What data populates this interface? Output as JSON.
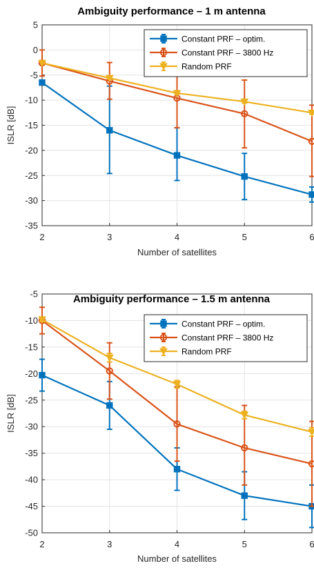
{
  "chart_data": [
    {
      "type": "line",
      "title": "Ambiguity performance – 1 m antenna",
      "xlabel": "Number of satellites",
      "ylabel": "ISLR [dB]",
      "x": [
        2,
        3,
        4,
        5,
        6
      ],
      "xlim": [
        2,
        6
      ],
      "ylim": [
        -35,
        5
      ],
      "yticks": [
        5,
        0,
        -5,
        -10,
        -15,
        -20,
        -25,
        -30,
        -35
      ],
      "grid": true,
      "legend_position": "top-right",
      "series": [
        {
          "name": "Constant PRF – optim.",
          "color": "#0072BD",
          "marker": "square",
          "values": [
            -6.5,
            -16.0,
            -21.0,
            -25.2,
            -28.8
          ],
          "err_low": [
            -6.5,
            -24.6,
            -26.0,
            -29.8,
            -30.3
          ],
          "err_high": [
            -6.5,
            -7.2,
            -15.5,
            -20.6,
            -27.3
          ]
        },
        {
          "name": "Constant PRF – 3800 Hz",
          "color": "#D95319",
          "marker": "circle",
          "values": [
            -2.6,
            -6.2,
            -9.6,
            -12.7,
            -18.2
          ],
          "err_low": [
            -5.2,
            -9.8,
            -15.5,
            -19.5,
            -25.2
          ],
          "err_high": [
            0.0,
            -2.5,
            -3.8,
            -6.0,
            -11.0
          ]
        },
        {
          "name": "Random PRF",
          "color": "#EDB120",
          "marker": "triangle-down",
          "values": [
            -2.6,
            -5.6,
            -8.6,
            -10.3,
            -12.5
          ],
          "err_low": [
            -2.6,
            -5.8,
            -8.8,
            -10.6,
            -12.8
          ],
          "err_high": [
            -2.6,
            -5.4,
            -8.4,
            -10.0,
            -12.3
          ]
        }
      ]
    },
    {
      "type": "line",
      "title": "Ambiguity performance – 1.5 m antenna",
      "xlabel": "Number of satellites",
      "ylabel": "ISLR [dB]",
      "x": [
        2,
        3,
        4,
        5,
        6
      ],
      "xlim": [
        2,
        6
      ],
      "ylim": [
        -50,
        -5
      ],
      "yticks": [
        -5,
        -10,
        -15,
        -20,
        -25,
        -30,
        -35,
        -40,
        -45,
        -50
      ],
      "grid": true,
      "legend_position": "top-right",
      "series": [
        {
          "name": "Constant PRF – optim.",
          "color": "#0072BD",
          "marker": "square",
          "values": [
            -20.3,
            -26.0,
            -38.0,
            -43.0,
            -45.0
          ],
          "err_low": [
            -23.3,
            -30.5,
            -42.0,
            -47.5,
            -49.0
          ],
          "err_high": [
            -17.3,
            -21.5,
            -34.0,
            -38.5,
            -41.0
          ]
        },
        {
          "name": "Constant PRF – 3800 Hz",
          "color": "#D95319",
          "marker": "circle",
          "values": [
            -10.0,
            -19.5,
            -29.5,
            -34.0,
            -37.0
          ],
          "err_low": [
            -12.5,
            -24.8,
            -36.5,
            -41.0,
            -45.0
          ],
          "err_high": [
            -7.5,
            -14.2,
            -22.5,
            -26.0,
            -29.0
          ]
        },
        {
          "name": "Random PRF",
          "color": "#EDB120",
          "marker": "triangle-down",
          "values": [
            -9.8,
            -17.0,
            -22.0,
            -27.8,
            -31.0
          ],
          "err_low": [
            -10.2,
            -17.8,
            -22.7,
            -28.5,
            -31.8
          ],
          "err_high": [
            -9.4,
            -16.2,
            -21.3,
            -27.1,
            -30.2
          ]
        }
      ]
    }
  ]
}
